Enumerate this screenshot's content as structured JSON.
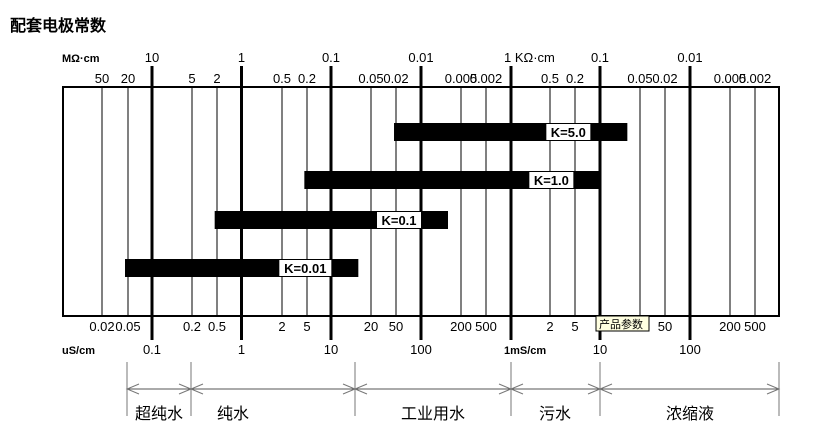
{
  "title": "配套电极常数",
  "resistivity_scale": {
    "unit": "MΩ·cm",
    "decade_labels": [
      "10",
      "1",
      "0.1",
      "0.01",
      "1 KΩ·cm",
      "0.1",
      "0.01"
    ],
    "minor_labels": [
      "50",
      "20",
      "5",
      "2",
      "0.5",
      "0.2",
      "0.05",
      "0.02",
      "0.005",
      "0.002",
      "0.5",
      "0.2",
      "0.05",
      "0.02",
      "0.005",
      "0.002"
    ]
  },
  "conductivity_scale": {
    "unit": "uS/cm",
    "decade_labels": [
      "0.1",
      "1",
      "10",
      "100",
      "1mS/cm",
      "10",
      "100"
    ],
    "minor_labels": [
      "0.02",
      "0.05",
      "0.2",
      "0.5",
      "2",
      "5",
      "20",
      "50",
      "200",
      "500",
      "2",
      "5",
      "",
      "50",
      "200",
      "500"
    ]
  },
  "electrodes": [
    {
      "label": "K=5.0",
      "from_uS_cm": 50,
      "to_uS_cm": 20000
    },
    {
      "label": "K=1.0",
      "from_uS_cm": 5,
      "to_uS_cm": 10000
    },
    {
      "label": "K=0.1",
      "from_uS_cm": 0.5,
      "to_uS_cm": 200
    },
    {
      "label": "K=0.01",
      "from_uS_cm": 0.05,
      "to_uS_cm": 20
    }
  ],
  "water_categories": [
    "超纯水",
    "纯水",
    "工业用水",
    "污水",
    "浓缩液"
  ],
  "tooltip": "产品参数"
}
